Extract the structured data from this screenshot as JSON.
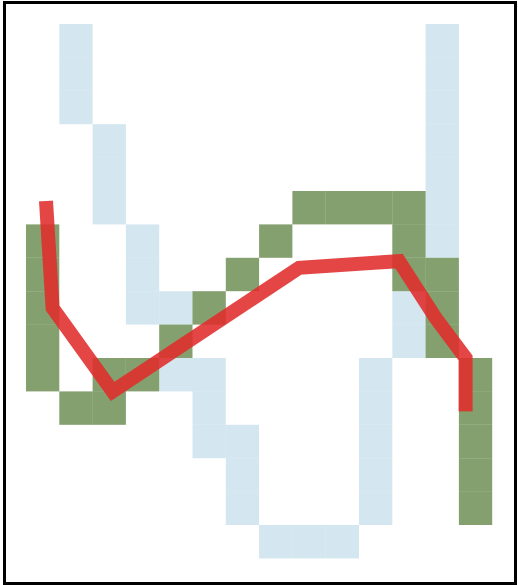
{
  "game": {
    "colors": {
      "background": "#ffffff",
      "border": "#000000",
      "pale_blue_cell": "#d4e6ef",
      "green_cell": "#84a06e",
      "red_path": "#e02b2b"
    },
    "grid": {
      "columns": 14,
      "rows": 16
    },
    "pale_blue_cells": [
      [
        1,
        0
      ],
      [
        1,
        1
      ],
      [
        1,
        2
      ],
      [
        2,
        3
      ],
      [
        2,
        4
      ],
      [
        2,
        5
      ],
      [
        3,
        6
      ],
      [
        3,
        7
      ],
      [
        3,
        8
      ],
      [
        4,
        8
      ],
      [
        4,
        10
      ],
      [
        5,
        10
      ],
      [
        5,
        11
      ],
      [
        5,
        12
      ],
      [
        6,
        12
      ],
      [
        6,
        13
      ],
      [
        6,
        14
      ],
      [
        7,
        15
      ],
      [
        8,
        15
      ],
      [
        9,
        15
      ],
      [
        10,
        10
      ],
      [
        10,
        11
      ],
      [
        10,
        12
      ],
      [
        10,
        13
      ],
      [
        10,
        14
      ],
      [
        11,
        8
      ],
      [
        11,
        9
      ],
      [
        12,
        0
      ],
      [
        12,
        1
      ],
      [
        12,
        2
      ],
      [
        12,
        3
      ],
      [
        12,
        4
      ],
      [
        12,
        5
      ],
      [
        12,
        6
      ]
    ],
    "green_cells": [
      [
        0,
        6
      ],
      [
        0,
        7
      ],
      [
        0,
        8
      ],
      [
        0,
        9
      ],
      [
        0,
        10
      ],
      [
        1,
        11
      ],
      [
        2,
        11
      ],
      [
        2,
        10
      ],
      [
        3,
        10
      ],
      [
        4,
        9
      ],
      [
        5,
        8
      ],
      [
        6,
        7
      ],
      [
        7,
        6
      ],
      [
        8,
        5
      ],
      [
        9,
        5
      ],
      [
        10,
        5
      ],
      [
        11,
        5
      ],
      [
        11,
        6
      ],
      [
        11,
        7
      ],
      [
        12,
        7
      ],
      [
        12,
        8
      ],
      [
        12,
        9
      ],
      [
        13,
        10
      ],
      [
        13,
        11
      ],
      [
        13,
        12
      ],
      [
        13,
        13
      ],
      [
        13,
        14
      ]
    ],
    "red_path": [
      [
        0.6,
        5.3
      ],
      [
        0.8,
        8.5
      ],
      [
        2.6,
        11.0
      ],
      [
        8.2,
        7.3
      ],
      [
        11.2,
        7.1
      ],
      [
        12.3,
        8.8
      ],
      [
        13.2,
        10.0
      ],
      [
        13.2,
        11.6
      ]
    ]
  }
}
